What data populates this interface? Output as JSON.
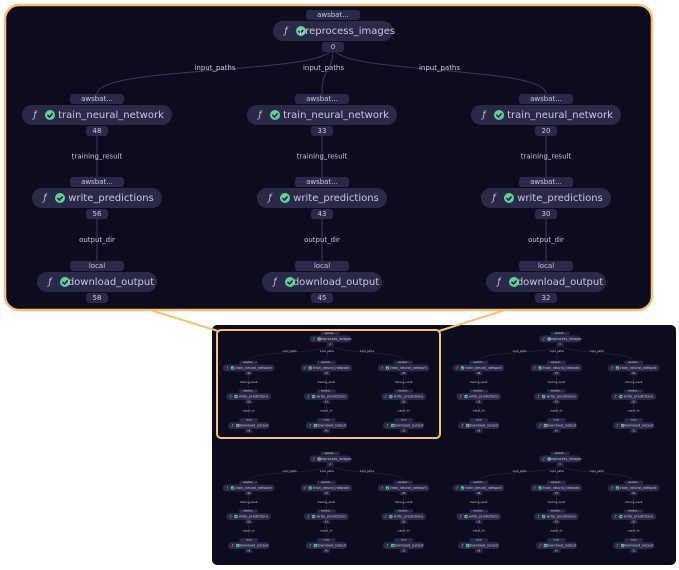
{
  "root": {
    "tag": "awsbat...",
    "label": "preprocess_images",
    "id": "0"
  },
  "root_edge_label": "input_paths",
  "edge_labels": [
    "training_result",
    "output_dir"
  ],
  "columns": [
    {
      "nodes": [
        {
          "tag": "awsbat...",
          "label": "train_neural_network",
          "id": "48"
        },
        {
          "tag": "awsbat...",
          "label": "write_predictions",
          "id": "56"
        },
        {
          "tag": "local",
          "label": "download_output",
          "id": "58"
        }
      ]
    },
    {
      "nodes": [
        {
          "tag": "awsbat...",
          "label": "train_neural_network",
          "id": "33"
        },
        {
          "tag": "awsbat...",
          "label": "write_predictions",
          "id": "43"
        },
        {
          "tag": "local",
          "label": "download_output",
          "id": "45"
        }
      ]
    },
    {
      "nodes": [
        {
          "tag": "awsbat...",
          "label": "train_neural_network",
          "id": "20"
        },
        {
          "tag": "awsbat...",
          "label": "write_predictions",
          "id": "30"
        },
        {
          "tag": "local",
          "label": "download_output",
          "id": "32"
        }
      ]
    }
  ]
}
